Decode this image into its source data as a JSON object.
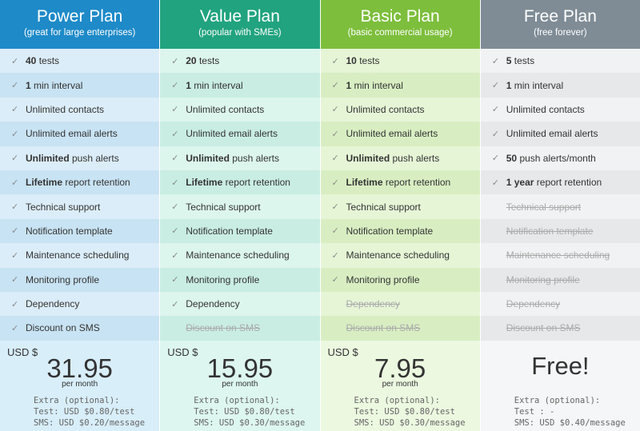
{
  "plans": [
    {
      "name": "Power Plan",
      "subtitle": "(great for large enterprises)",
      "colors": {
        "header": "#1e8ac8",
        "row_odd": "#dbedf8",
        "row_even": "#c8e3f3",
        "price_bg": "#d8eef9"
      },
      "features": [
        {
          "bold": "40",
          "text": " tests",
          "enabled": true
        },
        {
          "bold": "1",
          "text": " min interval",
          "enabled": true
        },
        {
          "bold": "",
          "text": "Unlimited contacts",
          "enabled": true
        },
        {
          "bold": "",
          "text": "Unlimited email alerts",
          "enabled": true
        },
        {
          "bold": "Unlimited",
          "text": " push alerts",
          "enabled": true
        },
        {
          "bold": "Lifetime",
          "text": " report retention",
          "enabled": true
        },
        {
          "bold": "",
          "text": "Technical support",
          "enabled": true
        },
        {
          "bold": "",
          "text": "Notification template",
          "enabled": true
        },
        {
          "bold": "",
          "text": "Maintenance scheduling",
          "enabled": true
        },
        {
          "bold": "",
          "text": "Monitoring profile",
          "enabled": true
        },
        {
          "bold": "",
          "text": "Dependency",
          "enabled": true
        },
        {
          "bold": "",
          "text": "Discount on SMS",
          "enabled": true
        }
      ],
      "currency": "USD $",
      "price": "31.95",
      "per": "per month",
      "extra": [
        "Extra (optional):",
        "Test: USD $0.80/test",
        "SMS: USD $0.20/message"
      ]
    },
    {
      "name": "Value Plan",
      "subtitle": "(popular with SMEs)",
      "colors": {
        "header": "#21a37f",
        "row_odd": "#dcf5ed",
        "row_even": "#c9ede2",
        "price_bg": "#ddf6ef"
      },
      "features": [
        {
          "bold": "20",
          "text": " tests",
          "enabled": true
        },
        {
          "bold": "1",
          "text": " min interval",
          "enabled": true
        },
        {
          "bold": "",
          "text": "Unlimited contacts",
          "enabled": true
        },
        {
          "bold": "",
          "text": "Unlimited email alerts",
          "enabled": true
        },
        {
          "bold": "Unlimited",
          "text": " push alerts",
          "enabled": true
        },
        {
          "bold": "Lifetime",
          "text": " report retention",
          "enabled": true
        },
        {
          "bold": "",
          "text": "Technical support",
          "enabled": true
        },
        {
          "bold": "",
          "text": "Notification template",
          "enabled": true
        },
        {
          "bold": "",
          "text": "Maintenance scheduling",
          "enabled": true
        },
        {
          "bold": "",
          "text": "Monitoring profile",
          "enabled": true
        },
        {
          "bold": "",
          "text": "Dependency",
          "enabled": true
        },
        {
          "bold": "",
          "text": "Discount on SMS",
          "enabled": false
        }
      ],
      "currency": "USD $",
      "price": "15.95",
      "per": "per month",
      "extra": [
        "Extra (optional):",
        "Test: USD $0.80/test",
        "SMS: USD $0.30/message"
      ]
    },
    {
      "name": "Basic Plan",
      "subtitle": "(basic commercial usage)",
      "colors": {
        "header": "#7dbe3c",
        "row_odd": "#e6f5d6",
        "row_even": "#d8eec2",
        "price_bg": "#ecf8e0"
      },
      "features": [
        {
          "bold": "10",
          "text": " tests",
          "enabled": true
        },
        {
          "bold": "1",
          "text": " min interval",
          "enabled": true
        },
        {
          "bold": "",
          "text": "Unlimited contacts",
          "enabled": true
        },
        {
          "bold": "",
          "text": "Unlimited email alerts",
          "enabled": true
        },
        {
          "bold": "Unlimited",
          "text": " push alerts",
          "enabled": true
        },
        {
          "bold": "Lifetime",
          "text": " report retention",
          "enabled": true
        },
        {
          "bold": "",
          "text": "Technical support",
          "enabled": true
        },
        {
          "bold": "",
          "text": "Notification template",
          "enabled": true
        },
        {
          "bold": "",
          "text": "Maintenance scheduling",
          "enabled": true
        },
        {
          "bold": "",
          "text": "Monitoring profile",
          "enabled": true
        },
        {
          "bold": "",
          "text": "Dependency",
          "enabled": false
        },
        {
          "bold": "",
          "text": "Discount on SMS",
          "enabled": false
        }
      ],
      "currency": "USD $",
      "price": "7.95",
      "per": "per month",
      "extra": [
        "Extra (optional):",
        "Test: USD $0.80/test",
        "SMS: USD $0.30/message"
      ]
    },
    {
      "name": "Free Plan",
      "subtitle": "(free forever)",
      "colors": {
        "header": "#7f8c96",
        "row_odd": "#f1f2f3",
        "row_even": "#e6e8ea",
        "price_bg": "#f5f6f7"
      },
      "features": [
        {
          "bold": "5",
          "text": " tests",
          "enabled": true
        },
        {
          "bold": "1",
          "text": " min interval",
          "enabled": true
        },
        {
          "bold": "",
          "text": "Unlimited contacts",
          "enabled": true
        },
        {
          "bold": "",
          "text": "Unlimited email alerts",
          "enabled": true
        },
        {
          "bold": "50",
          "text": " push alerts/month",
          "enabled": true
        },
        {
          "bold": "1 year",
          "text": " report retention",
          "enabled": true
        },
        {
          "bold": "",
          "text": "Technical support",
          "enabled": false
        },
        {
          "bold": "",
          "text": "Notification template",
          "enabled": false
        },
        {
          "bold": "",
          "text": "Maintenance scheduling",
          "enabled": false
        },
        {
          "bold": "",
          "text": "Monitoring profile",
          "enabled": false
        },
        {
          "bold": "",
          "text": "Dependency",
          "enabled": false
        },
        {
          "bold": "",
          "text": "Discount on SMS",
          "enabled": false
        }
      ],
      "currency": "",
      "price": "Free!",
      "per": "",
      "extra": [
        "Extra (optional):",
        "Test : -",
        "SMS: USD $0.40/message"
      ]
    }
  ],
  "icons": {
    "check": "check-icon"
  }
}
